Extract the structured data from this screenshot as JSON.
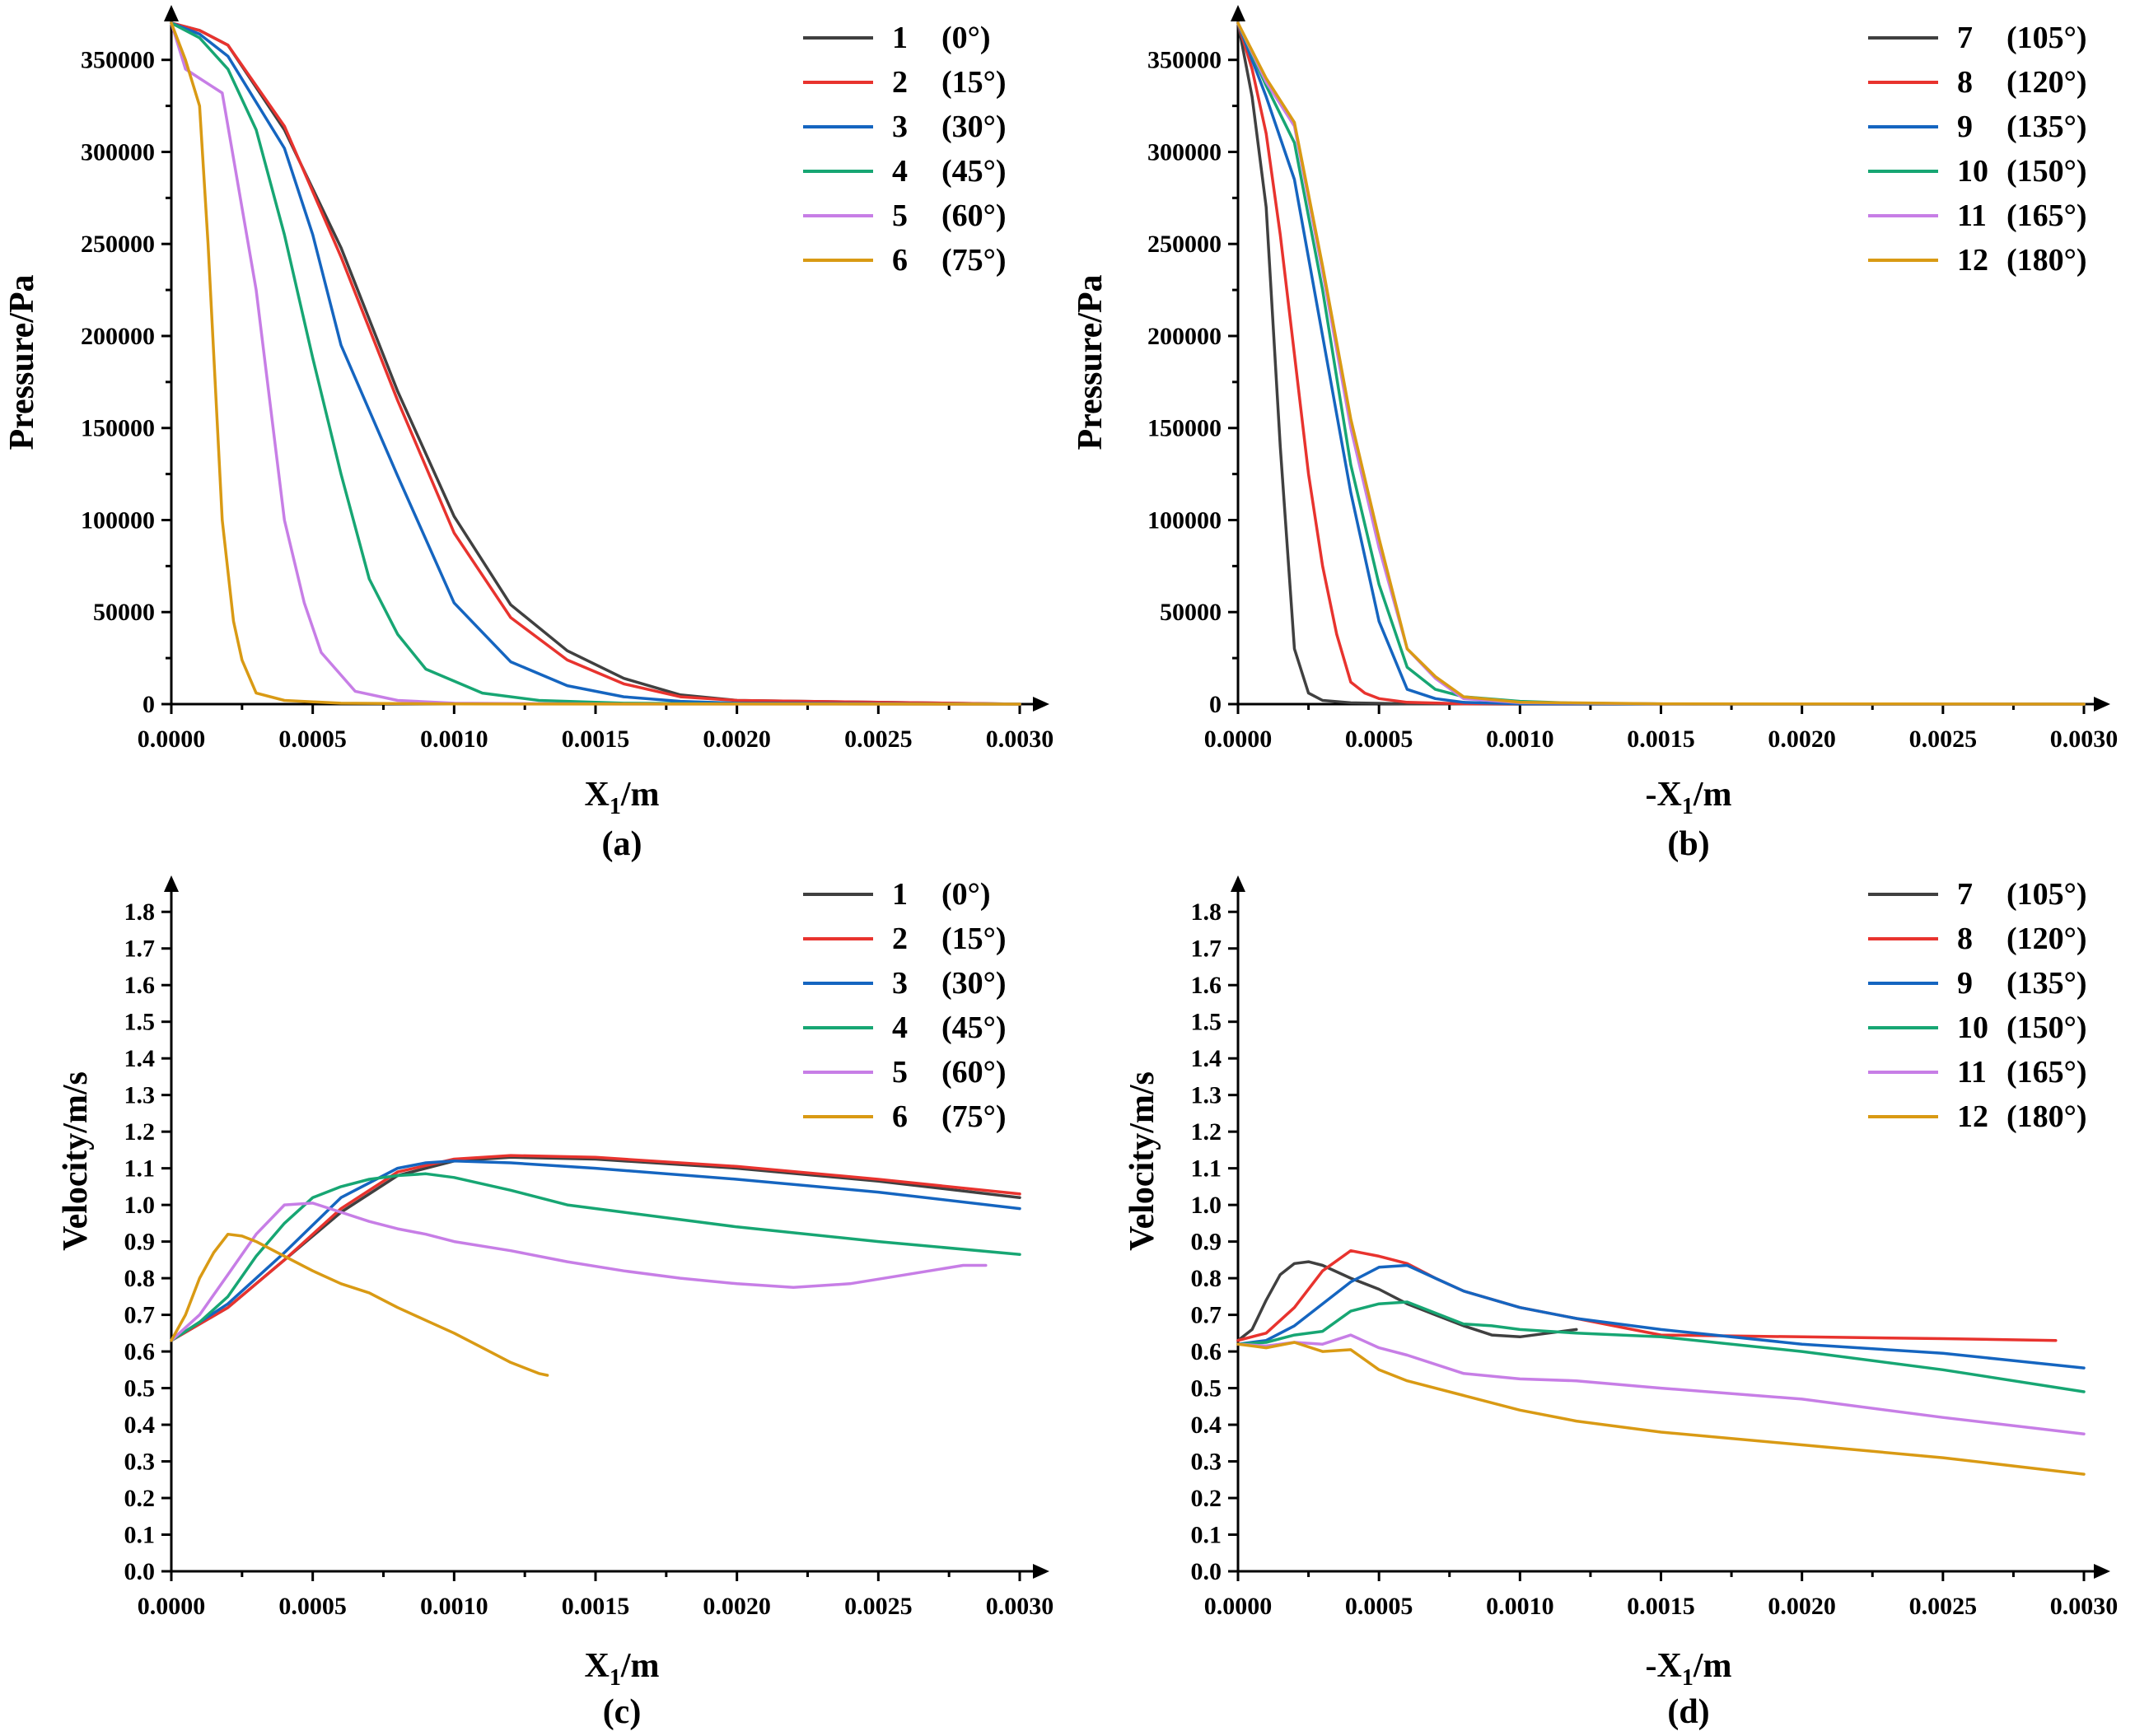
{
  "colors": [
    "#404040",
    "#e8332e",
    "#1565c0",
    "#17a673",
    "#c77ee6",
    "#d99a14"
  ],
  "chart_data": [
    {
      "type": "line",
      "panel_label": "(a)",
      "title": "",
      "xlabel": {
        "main": "X",
        "sub": "1",
        "unit": "/m"
      },
      "ylabel": "Pressure/Pa",
      "xlim": [
        0,
        0.003
      ],
      "ylim": [
        0,
        370000
      ],
      "xticks": [
        "0.0000",
        "0.0005",
        "0.0010",
        "0.0015",
        "0.0020",
        "0.0025",
        "0.0030"
      ],
      "yticks": [
        0,
        50000,
        100000,
        150000,
        200000,
        250000,
        300000,
        350000
      ],
      "series": [
        {
          "name": "1",
          "angle": "(0°)",
          "x": [
            0,
            0.0001,
            0.0002,
            0.0004,
            0.0006,
            0.0008,
            0.001,
            0.0012,
            0.0014,
            0.0016,
            0.0018,
            0.002,
            0.0025,
            0.003
          ],
          "y": [
            370000,
            366000,
            358000,
            312000,
            248000,
            170000,
            102000,
            54000,
            29000,
            14000,
            5000,
            2000,
            1000,
            0
          ]
        },
        {
          "name": "2",
          "angle": "(15°)",
          "x": [
            0,
            0.0001,
            0.0002,
            0.0004,
            0.0006,
            0.0008,
            0.001,
            0.0012,
            0.0014,
            0.0016,
            0.0018,
            0.002,
            0.0025,
            0.003
          ],
          "y": [
            370000,
            366000,
            358000,
            314000,
            243000,
            165000,
            93000,
            47000,
            24000,
            11000,
            4000,
            2000,
            1000,
            0
          ]
        },
        {
          "name": "3",
          "angle": "(30°)",
          "x": [
            0,
            0.0001,
            0.0002,
            0.0004,
            0.0005,
            0.0006,
            0.0008,
            0.001,
            0.0012,
            0.0014,
            0.0016,
            0.0018,
            0.002,
            0.003
          ],
          "y": [
            370000,
            364000,
            352000,
            302000,
            255000,
            195000,
            124000,
            55000,
            23000,
            10000,
            4000,
            1500,
            500,
            0
          ]
        },
        {
          "name": "4",
          "angle": "(45°)",
          "x": [
            0,
            0.0001,
            0.0002,
            0.0003,
            0.0004,
            0.0005,
            0.0006,
            0.0007,
            0.0008,
            0.0009,
            0.0011,
            0.0013,
            0.0016,
            0.002,
            0.003
          ],
          "y": [
            370000,
            362000,
            345000,
            312000,
            255000,
            188000,
            125000,
            68000,
            38000,
            19000,
            6000,
            2000,
            500,
            200,
            0
          ]
        },
        {
          "name": "5",
          "angle": "(60°)",
          "x": [
            0,
            5e-05,
            0.0001,
            0.00018,
            0.0003,
            0.0004,
            0.00047,
            0.00053,
            0.00065,
            0.0008,
            0.001,
            0.0015,
            0.003
          ],
          "y": [
            370000,
            345000,
            340000,
            332000,
            225000,
            100000,
            55000,
            28000,
            7000,
            2000,
            500,
            100,
            0
          ]
        },
        {
          "name": "6",
          "angle": "(75°)",
          "x": [
            0,
            5e-05,
            0.0001,
            0.00013,
            0.00018,
            0.00022,
            0.00025,
            0.0003,
            0.0004,
            0.0006,
            0.001,
            0.003
          ],
          "y": [
            370000,
            350000,
            325000,
            250000,
            100000,
            45000,
            24000,
            6000,
            2000,
            500,
            100,
            0
          ]
        }
      ]
    },
    {
      "type": "line",
      "panel_label": "(b)",
      "title": "",
      "xlabel": {
        "main": "-X",
        "sub": "1",
        "unit": "/m"
      },
      "ylabel": "Pressure/Pa",
      "xlim": [
        0,
        0.003
      ],
      "ylim": [
        0,
        370000
      ],
      "xticks": [
        "0.0000",
        "0.0005",
        "0.0010",
        "0.0015",
        "0.0020",
        "0.0025",
        "0.0030"
      ],
      "yticks": [
        0,
        50000,
        100000,
        150000,
        200000,
        250000,
        300000,
        350000
      ],
      "series": [
        {
          "name": "7",
          "angle": "(105°)",
          "x": [
            0,
            5e-05,
            0.0001,
            0.00015,
            0.0002,
            0.00025,
            0.0003,
            0.0004,
            0.0006,
            0.001,
            0.003
          ],
          "y": [
            370000,
            330000,
            270000,
            140000,
            30000,
            6000,
            2000,
            700,
            200,
            0,
            0
          ]
        },
        {
          "name": "8",
          "angle": "(120°)",
          "x": [
            0,
            5e-05,
            0.0001,
            0.00015,
            0.0002,
            0.00025,
            0.0003,
            0.00035,
            0.0004,
            0.00045,
            0.0005,
            0.0006,
            0.0008,
            0.003
          ],
          "y": [
            370000,
            345000,
            310000,
            255000,
            190000,
            125000,
            75000,
            38000,
            12000,
            6000,
            3000,
            1000,
            200,
            0
          ]
        },
        {
          "name": "9",
          "angle": "(135°)",
          "x": [
            0,
            5e-05,
            0.0001,
            0.0002,
            0.0003,
            0.0004,
            0.0005,
            0.0006,
            0.0007,
            0.0008,
            0.001,
            0.003
          ],
          "y": [
            370000,
            350000,
            330000,
            285000,
            200000,
            115000,
            45000,
            8000,
            3000,
            1000,
            200,
            0
          ]
        },
        {
          "name": "10",
          "angle": "(150°)",
          "x": [
            0,
            0.0001,
            0.0002,
            0.0003,
            0.0004,
            0.0005,
            0.0006,
            0.0007,
            0.0008,
            0.001,
            0.0012,
            0.0015,
            0.003
          ],
          "y": [
            370000,
            336000,
            305000,
            225000,
            130000,
            65000,
            20000,
            8000,
            4000,
            1500,
            500,
            100,
            0
          ]
        },
        {
          "name": "11",
          "angle": "(165°)",
          "x": [
            0,
            0.0001,
            0.0002,
            0.0003,
            0.0004,
            0.0005,
            0.0006,
            0.0007,
            0.0008,
            0.001,
            0.0015,
            0.003
          ],
          "y": [
            370000,
            338000,
            314000,
            235000,
            150000,
            85000,
            30000,
            14000,
            3000,
            800,
            100,
            0
          ]
        },
        {
          "name": "12",
          "angle": "(180°)",
          "x": [
            0,
            0.0001,
            0.0002,
            0.0003,
            0.0004,
            0.0005,
            0.0006,
            0.0007,
            0.0008,
            0.001,
            0.0015,
            0.003
          ],
          "y": [
            370000,
            340000,
            316000,
            238000,
            155000,
            90000,
            30000,
            15000,
            4000,
            1000,
            200,
            0
          ]
        }
      ]
    },
    {
      "type": "line",
      "panel_label": "(c)",
      "title": "",
      "xlabel": {
        "main": "X",
        "sub": "1",
        "unit": "/m"
      },
      "ylabel": "Velocity/m/s",
      "xlim": [
        0,
        0.003
      ],
      "ylim": [
        0,
        1.85
      ],
      "xticks": [
        "0.0000",
        "0.0005",
        "0.0010",
        "0.0015",
        "0.0020",
        "0.0025",
        "0.0030"
      ],
      "yticks": [
        "0.0",
        "0.1",
        "0.2",
        "0.3",
        "0.4",
        "0.5",
        "0.6",
        "0.7",
        "0.8",
        "0.9",
        "1.0",
        "1.1",
        "1.2",
        "1.3",
        "1.4",
        "1.5",
        "1.6",
        "1.7",
        "1.8"
      ],
      "series": [
        {
          "name": "1",
          "angle": "(0°)",
          "x": [
            0,
            0.0002,
            0.0004,
            0.0006,
            0.0008,
            0.001,
            0.0012,
            0.0015,
            0.002,
            0.0025,
            0.003
          ],
          "y": [
            0.63,
            0.72,
            0.85,
            0.98,
            1.08,
            1.12,
            1.13,
            1.125,
            1.1,
            1.065,
            1.02
          ]
        },
        {
          "name": "2",
          "angle": "(15°)",
          "x": [
            0,
            0.0002,
            0.0004,
            0.0006,
            0.0008,
            0.001,
            0.0012,
            0.0015,
            0.002,
            0.0025,
            0.003
          ],
          "y": [
            0.63,
            0.72,
            0.85,
            0.99,
            1.09,
            1.125,
            1.135,
            1.13,
            1.105,
            1.07,
            1.03
          ]
        },
        {
          "name": "3",
          "angle": "(30°)",
          "x": [
            0,
            0.0002,
            0.0004,
            0.0006,
            0.0008,
            0.0009,
            0.001,
            0.0012,
            0.0015,
            0.002,
            0.0025,
            0.003
          ],
          "y": [
            0.63,
            0.73,
            0.87,
            1.02,
            1.1,
            1.115,
            1.12,
            1.115,
            1.1,
            1.07,
            1.035,
            0.99
          ]
        },
        {
          "name": "4",
          "angle": "(45°)",
          "x": [
            0,
            0.0001,
            0.0002,
            0.0003,
            0.0004,
            0.0005,
            0.0006,
            0.0007,
            0.0008,
            0.0009,
            0.001,
            0.0012,
            0.0014,
            0.0016,
            0.002,
            0.0025,
            0.003
          ],
          "y": [
            0.63,
            0.68,
            0.75,
            0.86,
            0.95,
            1.02,
            1.05,
            1.07,
            1.08,
            1.085,
            1.075,
            1.04,
            1.0,
            0.98,
            0.94,
            0.9,
            0.865
          ]
        },
        {
          "name": "5",
          "angle": "(60°)",
          "x": [
            0,
            0.0001,
            0.0002,
            0.0003,
            0.0004,
            0.0005,
            0.0006,
            0.0007,
            0.0008,
            0.0009,
            0.001,
            0.0012,
            0.0014,
            0.0016,
            0.0018,
            0.002,
            0.0022,
            0.0024,
            0.0026,
            0.0028,
            0.00288
          ],
          "y": [
            0.63,
            0.7,
            0.81,
            0.92,
            1.0,
            1.005,
            0.98,
            0.955,
            0.935,
            0.92,
            0.9,
            0.875,
            0.845,
            0.82,
            0.8,
            0.785,
            0.775,
            0.785,
            0.81,
            0.835,
            0.835
          ]
        },
        {
          "name": "6",
          "angle": "(75°)",
          "x": [
            0,
            5e-05,
            0.0001,
            0.00015,
            0.0002,
            0.00025,
            0.0003,
            0.0004,
            0.0005,
            0.0006,
            0.0007,
            0.0008,
            0.0009,
            0.001,
            0.0011,
            0.0012,
            0.0013,
            0.00133
          ],
          "y": [
            0.63,
            0.7,
            0.8,
            0.87,
            0.92,
            0.915,
            0.9,
            0.86,
            0.82,
            0.785,
            0.76,
            0.72,
            0.685,
            0.65,
            0.61,
            0.57,
            0.54,
            0.535
          ]
        }
      ]
    },
    {
      "type": "line",
      "panel_label": "(d)",
      "title": "",
      "xlabel": {
        "main": "-X",
        "sub": "1",
        "unit": "/m"
      },
      "ylabel": "Velocity/m/s",
      "xlim": [
        0,
        0.003
      ],
      "ylim": [
        0,
        1.85
      ],
      "xticks": [
        "0.0000",
        "0.0005",
        "0.0010",
        "0.0015",
        "0.0020",
        "0.0025",
        "0.0030"
      ],
      "yticks": [
        "0.0",
        "0.1",
        "0.2",
        "0.3",
        "0.4",
        "0.5",
        "0.6",
        "0.7",
        "0.8",
        "0.9",
        "1.0",
        "1.1",
        "1.2",
        "1.3",
        "1.4",
        "1.5",
        "1.6",
        "1.7",
        "1.8"
      ],
      "series": [
        {
          "name": "7",
          "angle": "(105°)",
          "x": [
            0,
            5e-05,
            0.0001,
            0.00015,
            0.0002,
            0.00025,
            0.0003,
            0.0004,
            0.0005,
            0.0006,
            0.0007,
            0.0008,
            0.0009,
            0.001,
            0.0011,
            0.0012
          ],
          "y": [
            0.63,
            0.66,
            0.74,
            0.81,
            0.84,
            0.845,
            0.835,
            0.8,
            0.77,
            0.73,
            0.7,
            0.67,
            0.645,
            0.64,
            0.65,
            0.66
          ]
        },
        {
          "name": "8",
          "angle": "(120°)",
          "x": [
            0,
            0.0001,
            0.0002,
            0.0003,
            0.0004,
            0.0005,
            0.0006,
            0.0007,
            0.0008,
            0.001,
            0.0012,
            0.0015,
            0.002,
            0.0025,
            0.0029
          ],
          "y": [
            0.63,
            0.65,
            0.72,
            0.82,
            0.875,
            0.86,
            0.84,
            0.8,
            0.765,
            0.72,
            0.69,
            0.645,
            0.64,
            0.635,
            0.63
          ]
        },
        {
          "name": "9",
          "angle": "(135°)",
          "x": [
            0,
            0.0001,
            0.0002,
            0.0003,
            0.0004,
            0.0005,
            0.0006,
            0.0007,
            0.0008,
            0.001,
            0.0012,
            0.0015,
            0.002,
            0.0025,
            0.003
          ],
          "y": [
            0.62,
            0.63,
            0.67,
            0.73,
            0.79,
            0.83,
            0.835,
            0.8,
            0.765,
            0.72,
            0.69,
            0.66,
            0.62,
            0.595,
            0.555
          ]
        },
        {
          "name": "10",
          "angle": "(150°)",
          "x": [
            0,
            0.0001,
            0.0002,
            0.0003,
            0.0004,
            0.0005,
            0.0006,
            0.0007,
            0.0008,
            0.0009,
            0.001,
            0.0012,
            0.0015,
            0.002,
            0.0025,
            0.003
          ],
          "y": [
            0.62,
            0.625,
            0.645,
            0.655,
            0.71,
            0.73,
            0.735,
            0.705,
            0.675,
            0.67,
            0.66,
            0.65,
            0.64,
            0.6,
            0.55,
            0.49
          ]
        },
        {
          "name": "11",
          "angle": "(165°)",
          "x": [
            0,
            0.0001,
            0.0002,
            0.0003,
            0.0004,
            0.0005,
            0.0006,
            0.0008,
            0.001,
            0.0012,
            0.0015,
            0.002,
            0.0025,
            0.003
          ],
          "y": [
            0.62,
            0.615,
            0.625,
            0.62,
            0.645,
            0.61,
            0.59,
            0.54,
            0.525,
            0.52,
            0.5,
            0.47,
            0.42,
            0.375
          ]
        },
        {
          "name": "12",
          "angle": "(180°)",
          "x": [
            0,
            0.0001,
            0.0002,
            0.0003,
            0.0004,
            0.0005,
            0.0006,
            0.0008,
            0.001,
            0.0012,
            0.0015,
            0.002,
            0.0025,
            0.003
          ],
          "y": [
            0.62,
            0.61,
            0.625,
            0.6,
            0.605,
            0.55,
            0.52,
            0.48,
            0.44,
            0.41,
            0.38,
            0.345,
            0.31,
            0.265
          ]
        }
      ]
    }
  ]
}
